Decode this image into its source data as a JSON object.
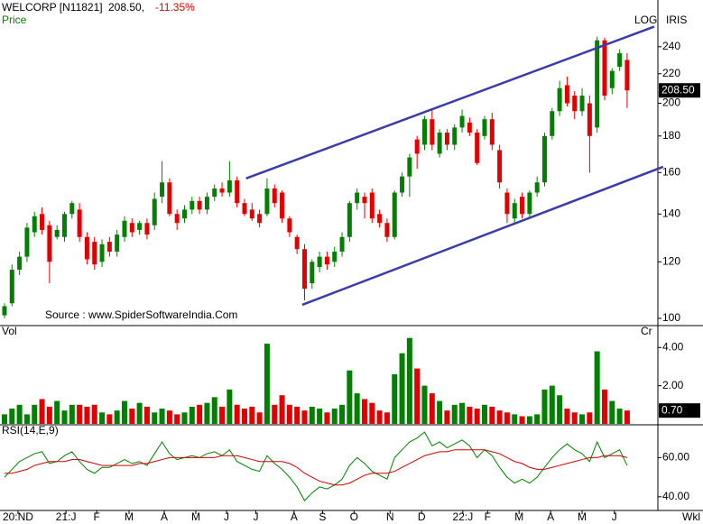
{
  "header": {
    "symbol": "WELCORP [N11821]",
    "price": "208.50,",
    "change": "-11.35%"
  },
  "chart_data": [
    {
      "type": "candlestick",
      "label": "Price",
      "scale_label": "LOG",
      "indicator": "IRIS",
      "log_scale": true,
      "annotation": "Source : www.SpiderSoftwareIndia.Com",
      "last_label": "208.50",
      "xlim": [
        -0.6,
        87.1
      ],
      "ylim": [
        98,
        279
      ],
      "yticks": [
        100,
        120,
        140,
        160,
        180,
        200,
        220,
        240
      ],
      "up_color": "#008000",
      "down_color": "#e00000",
      "open": [
        101,
        105,
        117,
        122,
        132,
        140,
        135,
        130,
        130,
        140,
        142,
        130,
        128,
        120,
        128,
        124,
        130,
        136,
        133,
        136,
        135,
        148,
        155,
        140,
        138,
        142,
        146,
        142,
        148,
        152,
        150,
        156,
        145,
        142,
        140,
        140,
        152,
        150,
        138,
        130,
        125,
        112,
        118,
        122,
        120,
        124,
        130,
        145,
        148,
        150,
        140,
        136,
        130,
        150,
        158,
        178,
        175,
        190,
        170,
        182,
        175,
        185,
        188,
        182,
        180,
        190,
        172,
        150,
        138,
        148,
        140,
        150,
        155,
        180,
        195,
        212,
        205,
        195,
        200,
        185,
        245,
        210,
        225,
        230
      ],
      "high": [
        105,
        119,
        124,
        136,
        141,
        143,
        137,
        135,
        141,
        146,
        145,
        132,
        130,
        129,
        130,
        133,
        139,
        138,
        137,
        138,
        150,
        166,
        157,
        142,
        144,
        148,
        148,
        150,
        154,
        155,
        166,
        158,
        147,
        145,
        142,
        157,
        154,
        151,
        139,
        131,
        127,
        121,
        124,
        124,
        126,
        132,
        146,
        152,
        150,
        152,
        142,
        138,
        151,
        160,
        170,
        180,
        192,
        196,
        184,
        184,
        187,
        196,
        191,
        184,
        192,
        194,
        175,
        152,
        147,
        150,
        151,
        158,
        182,
        197,
        215,
        218,
        208,
        210,
        205,
        248,
        247,
        224,
        238,
        235
      ],
      "low": [
        100,
        104,
        115,
        120,
        130,
        131,
        112,
        129,
        128,
        138,
        128,
        119,
        117,
        118,
        122,
        122,
        128,
        130,
        131,
        129,
        133,
        145,
        139,
        133,
        136,
        140,
        140,
        140,
        146,
        148,
        148,
        143,
        139,
        137,
        134,
        139,
        143,
        136,
        130,
        123,
        106,
        110,
        116,
        117,
        118,
        122,
        128,
        142,
        138,
        136,
        134,
        128,
        129,
        148,
        148,
        162,
        172,
        172,
        168,
        172,
        172,
        182,
        180,
        164,
        178,
        172,
        152,
        136,
        136,
        138,
        138,
        148,
        153,
        178,
        192,
        198,
        190,
        192,
        160,
        182,
        202,
        206,
        222,
        197
      ],
      "close": [
        104,
        117,
        122,
        134,
        139,
        133,
        120,
        133,
        140,
        145,
        130,
        121,
        119,
        127,
        124,
        131,
        137,
        132,
        136,
        131,
        147,
        155,
        140,
        136,
        142,
        146,
        142,
        148,
        152,
        150,
        156,
        145,
        140,
        138,
        136,
        152,
        145,
        138,
        132,
        125,
        110,
        120,
        122,
        119,
        124,
        130,
        145,
        150,
        145,
        138,
        136,
        130,
        150,
        158,
        168,
        170,
        190,
        175,
        182,
        175,
        185,
        192,
        182,
        165,
        190,
        175,
        155,
        140,
        145,
        140,
        150,
        155,
        180,
        195,
        210,
        200,
        195,
        205,
        180,
        245,
        205,
        222,
        235,
        208.5
      ],
      "trendlines": [
        {
          "x": [
            32.2,
            86.6
          ],
          "y": [
            157,
            256
          ],
          "color": "#3c3ca8"
        },
        {
          "x": [
            39.7,
            87.8
          ],
          "y": [
            104.5,
            163
          ],
          "color": "#3c3ca8"
        }
      ]
    },
    {
      "type": "bar",
      "label": "Vol",
      "unit": "Cr",
      "last_label": "0.70",
      "ylim": [
        0,
        5.1
      ],
      "yticks": [
        {
          "value": 2,
          "label": "2.00"
        },
        {
          "value": 4,
          "label": "4.00"
        }
      ],
      "values": [
        0.5,
        0.8,
        1.0,
        0.5,
        1.0,
        1.3,
        0.9,
        1.2,
        0.7,
        1.0,
        1.0,
        0.9,
        1.0,
        0.6,
        0.5,
        0.7,
        1.2,
        0.8,
        1.1,
        0.9,
        0.6,
        0.8,
        0.7,
        0.5,
        0.6,
        0.9,
        1.0,
        1.1,
        1.4,
        0.9,
        1.8,
        1.0,
        0.8,
        0.9,
        0.6,
        4.2,
        1.0,
        1.5,
        1.0,
        0.9,
        0.7,
        0.9,
        0.8,
        0.6,
        0.8,
        1.0,
        2.8,
        1.6,
        1.3,
        1.1,
        0.7,
        0.6,
        2.6,
        3.7,
        4.5,
        2.9,
        2.0,
        1.6,
        1.2,
        0.7,
        1.0,
        1.1,
        0.9,
        0.8,
        1.0,
        0.9,
        0.7,
        0.6,
        0.5,
        0.4,
        0.4,
        0.5,
        1.8,
        2.0,
        1.5,
        0.8,
        0.6,
        0.5,
        0.6,
        3.8,
        1.8,
        1.2,
        0.8,
        0.7
      ]
    },
    {
      "type": "line",
      "label": "RSI(14,E,9)",
      "ylim": [
        33,
        76.3
      ],
      "yticks": [
        {
          "value": 40,
          "label": "40.00"
        },
        {
          "value": 60,
          "label": "60.00"
        }
      ],
      "xticks": [
        {
          "value": 1.8,
          "label": "20:ND"
        },
        {
          "value": 8.2,
          "label": "21:J"
        },
        {
          "value": 12.3,
          "label": "F"
        },
        {
          "value": 16.6,
          "label": "M"
        },
        {
          "value": 21.3,
          "label": "A"
        },
        {
          "value": 25.5,
          "label": "M"
        },
        {
          "value": 29.6,
          "label": "J"
        },
        {
          "value": 33.5,
          "label": "J"
        },
        {
          "value": 38.6,
          "label": "A"
        },
        {
          "value": 42.4,
          "label": "S"
        },
        {
          "value": 46.6,
          "label": "O"
        },
        {
          "value": 51.4,
          "label": "N"
        },
        {
          "value": 55.6,
          "label": "D"
        },
        {
          "value": 61.1,
          "label": "22:J"
        },
        {
          "value": 64.4,
          "label": "F"
        },
        {
          "value": 68.6,
          "label": "M"
        },
        {
          "value": 72.8,
          "label": "A"
        },
        {
          "value": 77,
          "label": "M"
        },
        {
          "value": 81.3,
          "label": "J"
        }
      ],
      "x_unit": "Wkl",
      "series": [
        {
          "color": "#008000",
          "values": [
            50,
            54,
            58,
            60,
            62,
            63,
            57,
            58,
            61,
            63,
            58,
            54,
            52,
            55,
            55,
            57,
            59,
            57,
            58,
            56,
            62,
            68,
            62,
            59,
            60,
            61,
            60,
            62,
            63,
            61,
            64,
            58,
            56,
            54,
            53,
            61,
            57,
            54,
            50,
            45,
            38,
            42,
            45,
            44,
            46,
            49,
            56,
            60,
            57,
            53,
            51,
            49,
            60,
            64,
            68,
            70,
            73,
            66,
            68,
            65,
            67,
            69,
            66,
            60,
            64,
            61,
            55,
            50,
            47,
            49,
            47,
            50,
            55,
            60,
            64,
            67,
            64,
            62,
            58,
            68,
            60,
            62,
            64,
            56
          ]
        },
        {
          "color": "#d00000",
          "values": [
            52,
            52,
            53,
            54,
            56,
            57,
            58,
            58,
            58,
            59,
            59,
            58,
            57,
            56,
            56,
            56,
            56,
            56,
            57,
            57,
            58,
            59,
            60,
            60,
            60,
            60,
            60,
            60,
            60,
            61,
            61,
            61,
            60,
            59,
            58,
            58,
            58,
            58,
            57,
            55,
            52,
            50,
            48,
            47,
            46,
            46,
            47,
            49,
            51,
            52,
            52,
            52,
            53,
            55,
            57,
            59,
            61,
            62,
            63,
            63,
            64,
            64,
            64,
            64,
            64,
            63,
            62,
            60,
            58,
            57,
            55,
            54,
            54,
            55,
            56,
            57,
            58,
            59,
            60,
            60,
            61,
            61,
            61,
            60
          ]
        }
      ]
    }
  ]
}
